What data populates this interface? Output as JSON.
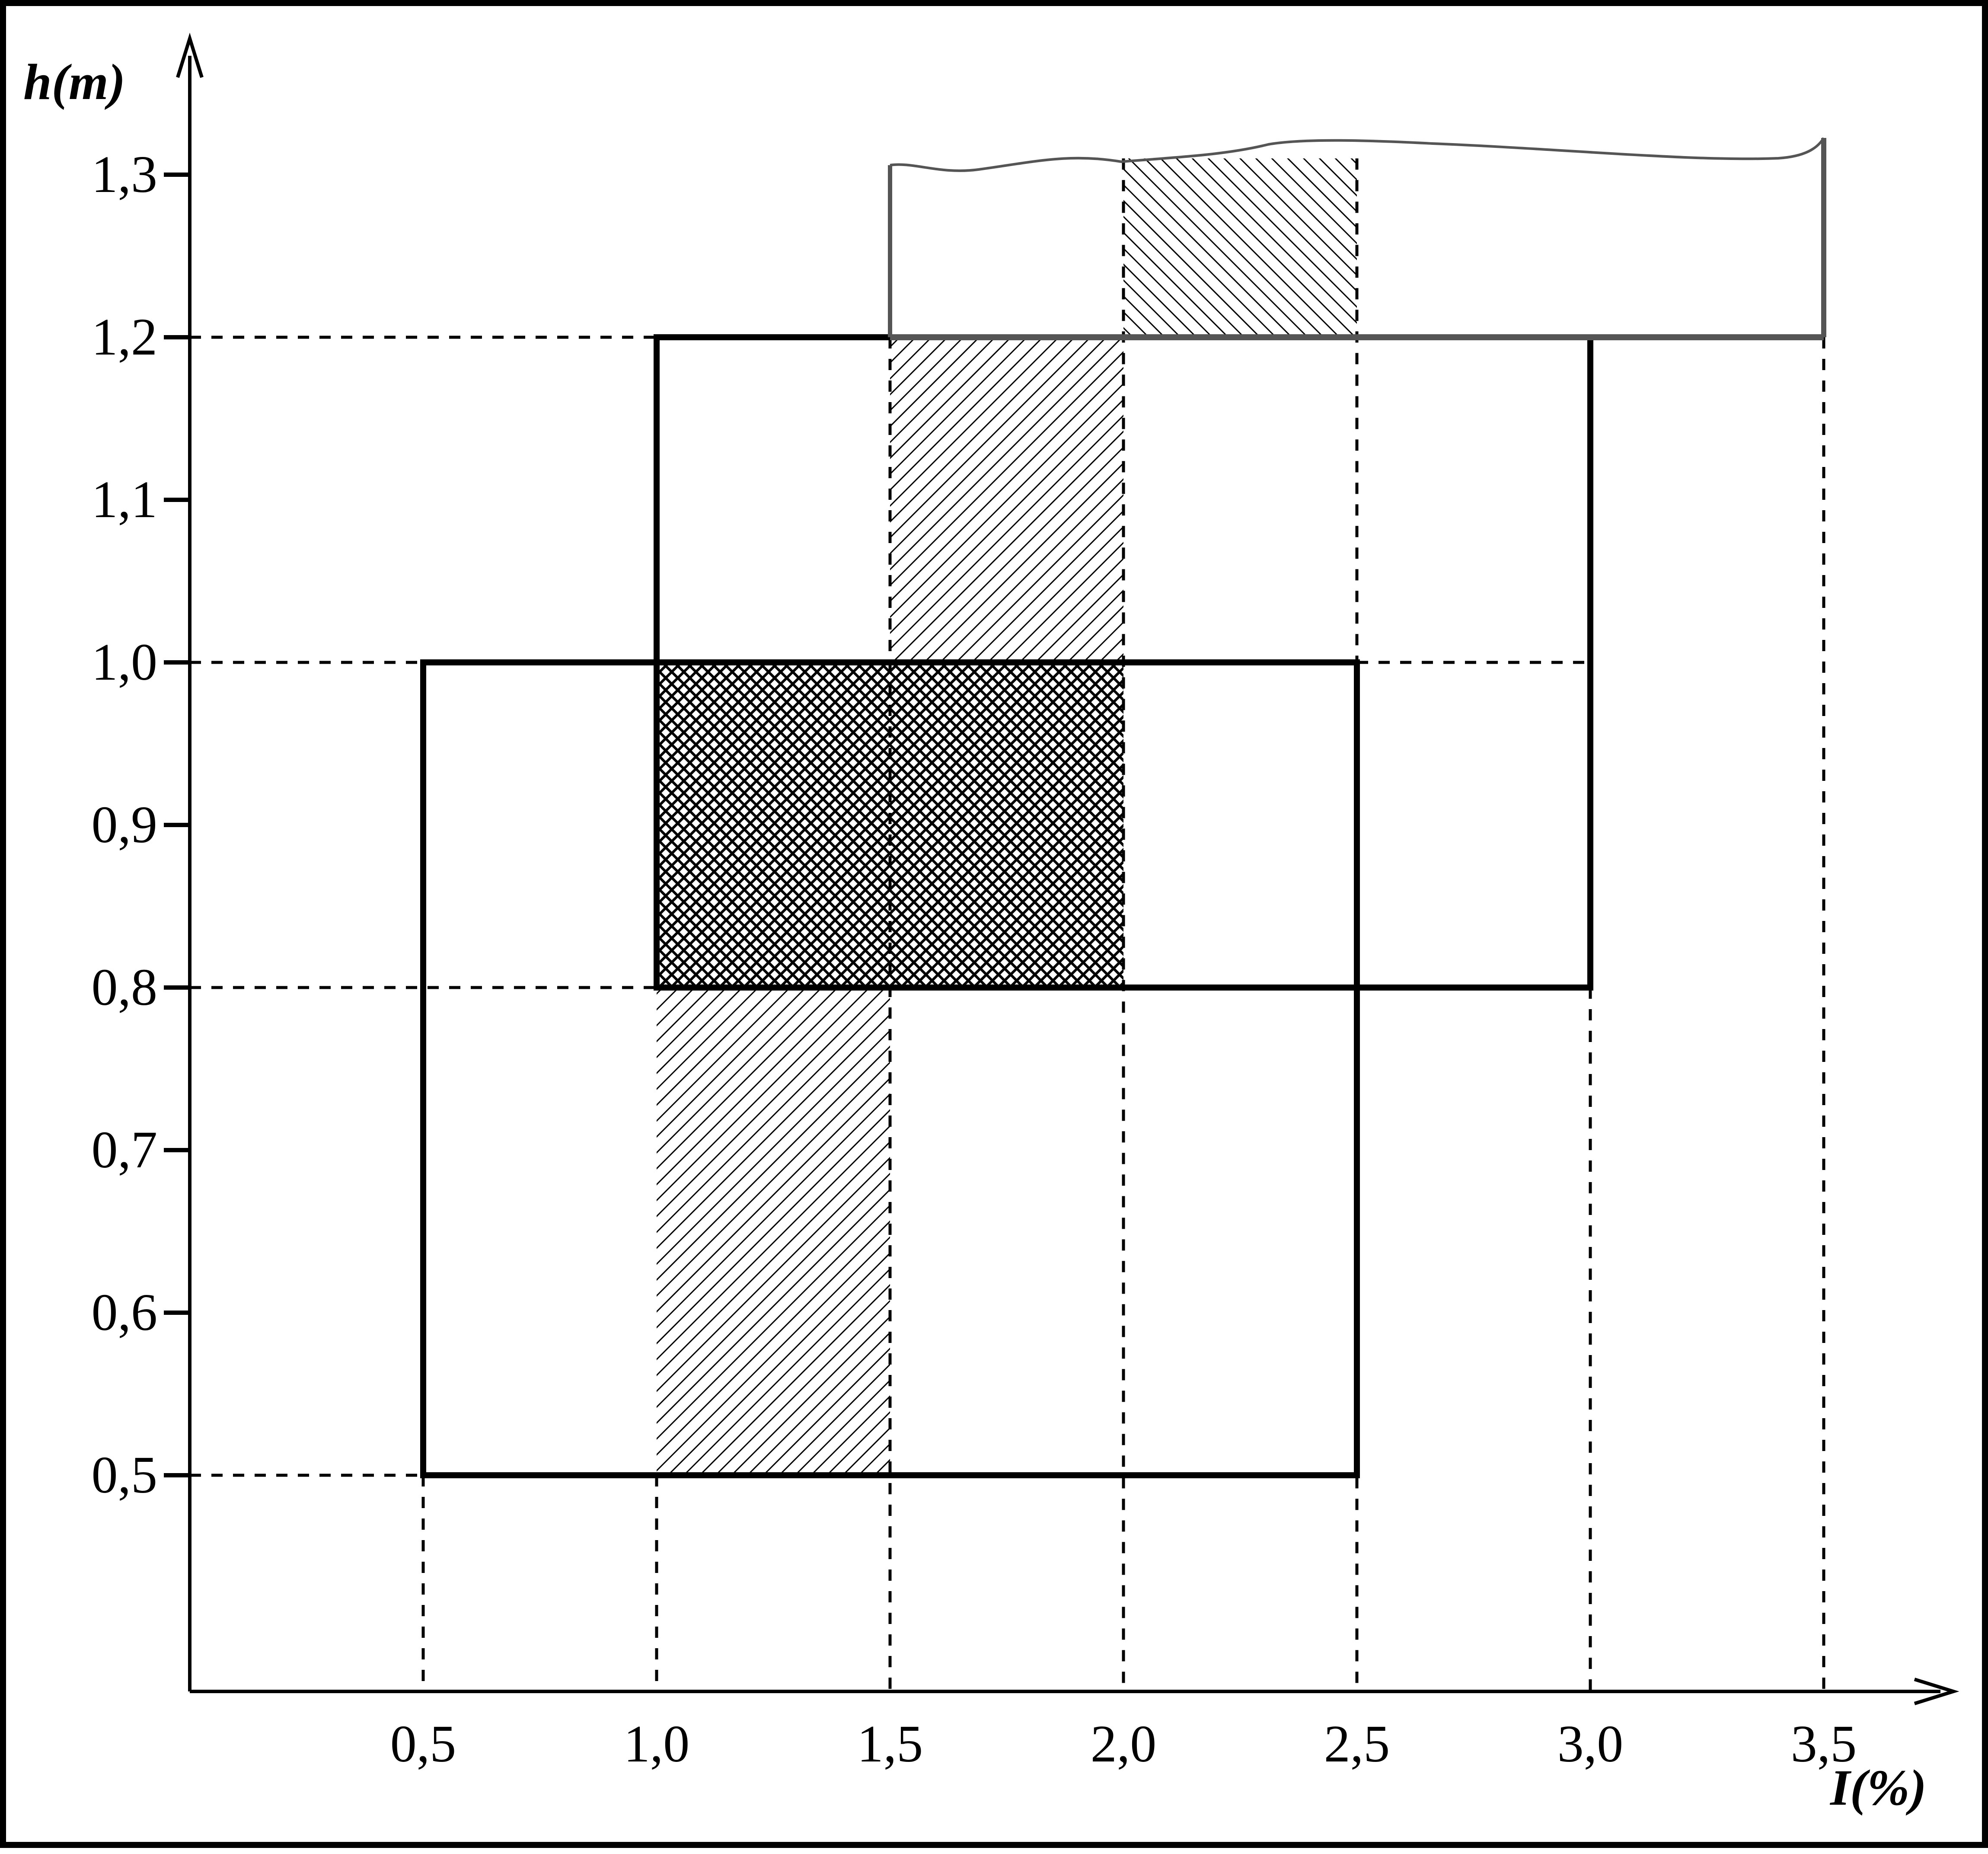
{
  "chart_data": {
    "type": "area",
    "xlabel": "I(%)",
    "ylabel": "h(m)",
    "xlim": [
      0,
      3.7
    ],
    "ylim": [
      0.37,
      1.38
    ],
    "x_ticks": [
      "0,5",
      "1,0",
      "1,5",
      "2,0",
      "2,5",
      "3,0",
      "3,5"
    ],
    "x_tick_values": [
      0.5,
      1.0,
      1.5,
      2.0,
      2.5,
      3.0,
      3.5
    ],
    "y_ticks": [
      "0,5",
      "0,6",
      "0,7",
      "0,8",
      "0,9",
      "1,0",
      "1,1",
      "1,2",
      "1,3"
    ],
    "y_tick_values": [
      0.5,
      0.6,
      0.7,
      0.8,
      0.9,
      1.0,
      1.1,
      1.2,
      1.3
    ],
    "grid": "dashed guide lines at region boundaries",
    "legend": "none",
    "regions": [
      {
        "x": [
          0.5,
          2.5
        ],
        "y": [
          0.5,
          1.0
        ],
        "style": "outline"
      },
      {
        "x": [
          1.0,
          3.0
        ],
        "y": [
          0.8,
          1.2
        ],
        "style": "outline"
      },
      {
        "x": [
          1.5,
          3.5
        ],
        "y": [
          1.2,
          1.32
        ],
        "style": "open-top outline"
      }
    ],
    "shaded": [
      {
        "x": [
          1.0,
          1.5
        ],
        "y": [
          0.5,
          0.8
        ],
        "pattern": "diagonal hatch"
      },
      {
        "x": [
          1.0,
          2.0
        ],
        "y": [
          0.8,
          1.0
        ],
        "pattern": "cross hatch"
      },
      {
        "x": [
          1.5,
          2.0
        ],
        "y": [
          1.0,
          1.2
        ],
        "pattern": "diagonal hatch"
      },
      {
        "x": [
          2.0,
          2.5
        ],
        "y": [
          1.2,
          1.31
        ],
        "pattern": "back diagonal hatch"
      }
    ],
    "colors": {
      "ink": "#000000",
      "top_outline": "#555555",
      "background": "#ffffff"
    }
  }
}
